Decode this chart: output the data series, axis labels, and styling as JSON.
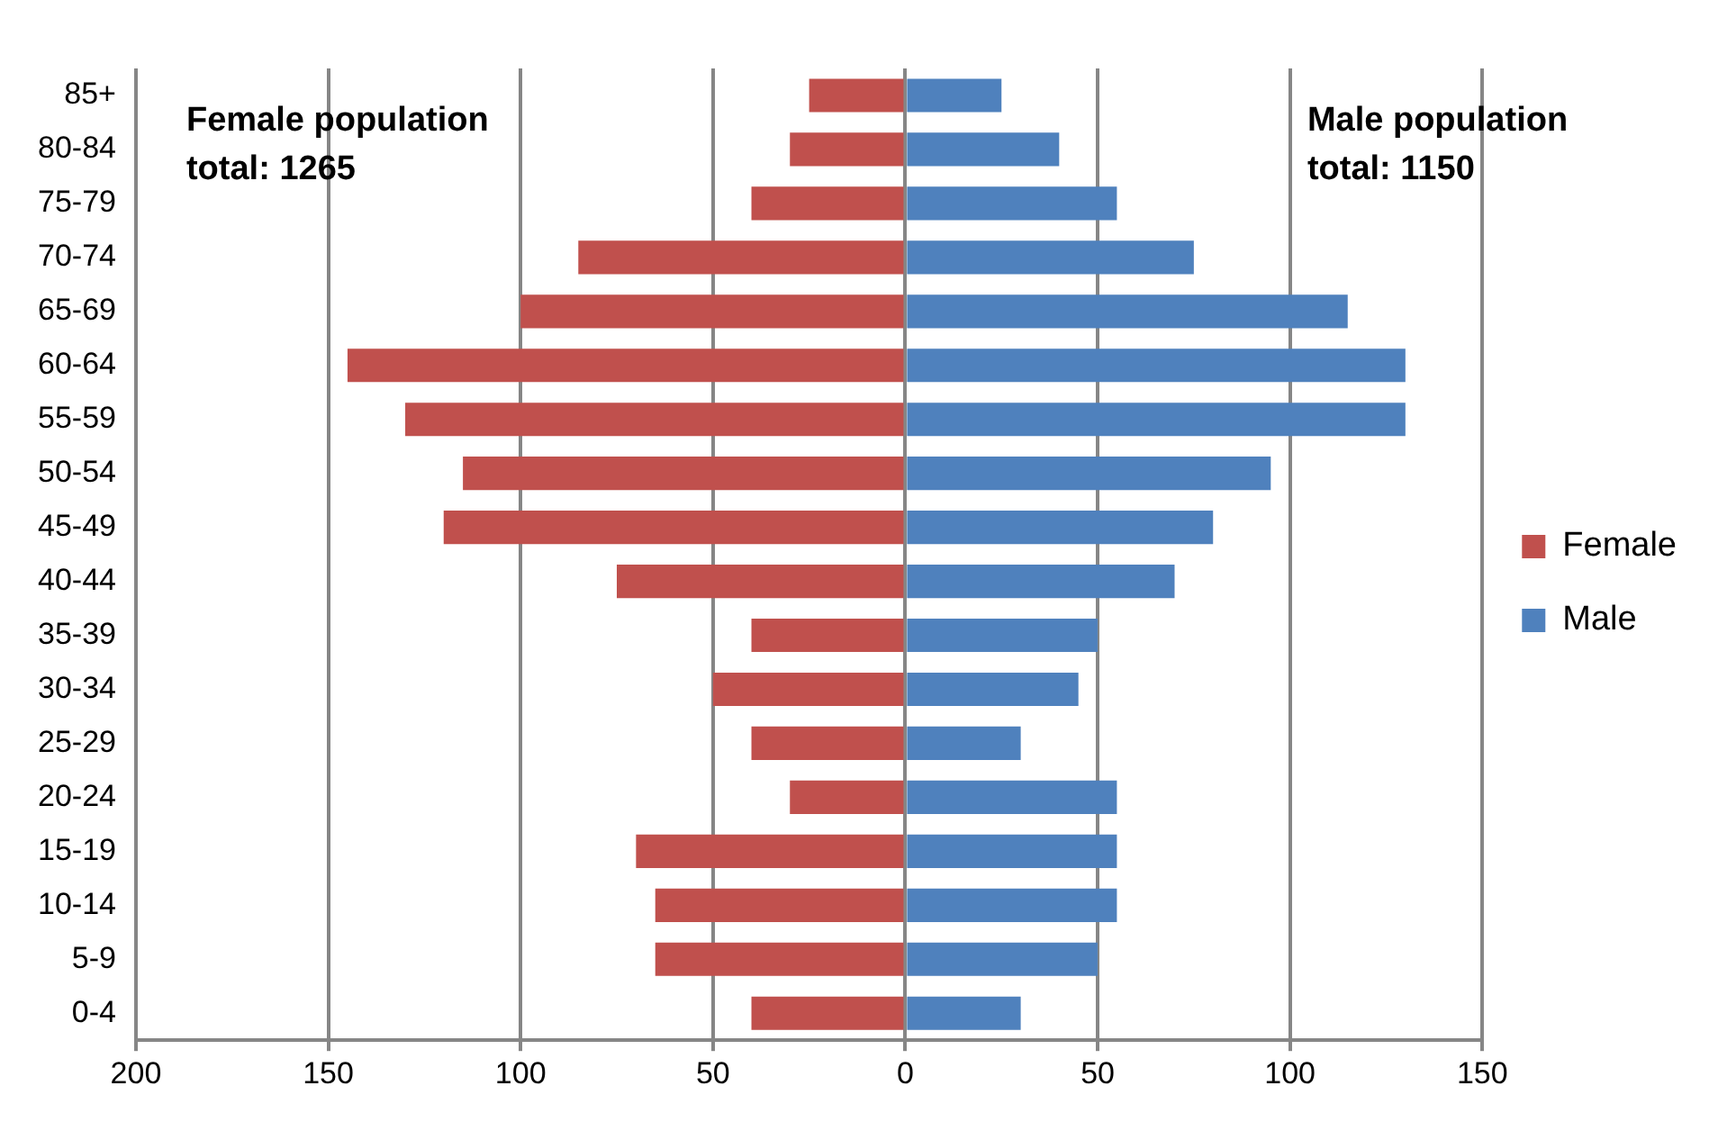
{
  "chart_data": {
    "type": "bar",
    "orientation": "horizontal",
    "stacked": true,
    "categories": [
      "85+",
      "80-84",
      "75-79",
      "70-74",
      "65-69",
      "60-64",
      "55-59",
      "50-54",
      "45-49",
      "40-44",
      "35-39",
      "30-34",
      "25-29",
      "20-24",
      "15-19",
      "10-14",
      "5-9",
      "0-4"
    ],
    "series": [
      {
        "name": "Female",
        "color": "#c0504d",
        "values": [
          -25,
          -30,
          -40,
          -85,
          -100,
          -145,
          -130,
          -115,
          -120,
          -75,
          -40,
          -50,
          -40,
          -30,
          -70,
          -65,
          -65,
          -40
        ]
      },
      {
        "name": "Male",
        "color": "#4f81bd",
        "values": [
          25,
          40,
          55,
          75,
          115,
          130,
          130,
          95,
          80,
          70,
          50,
          45,
          30,
          55,
          55,
          55,
          50,
          30
        ]
      }
    ],
    "xlim": [
      -200,
      150
    ],
    "xticks": [
      {
        "value": -200,
        "label": "200"
      },
      {
        "value": -150,
        "label": "150"
      },
      {
        "value": -100,
        "label": "100"
      },
      {
        "value": -50,
        "label": "50"
      },
      0,
      50,
      100,
      150
    ],
    "grid": "x",
    "legend": "right",
    "annotations": [
      "Female population\ntotal: 1265",
      "Male population\ntotal: 1150"
    ]
  }
}
